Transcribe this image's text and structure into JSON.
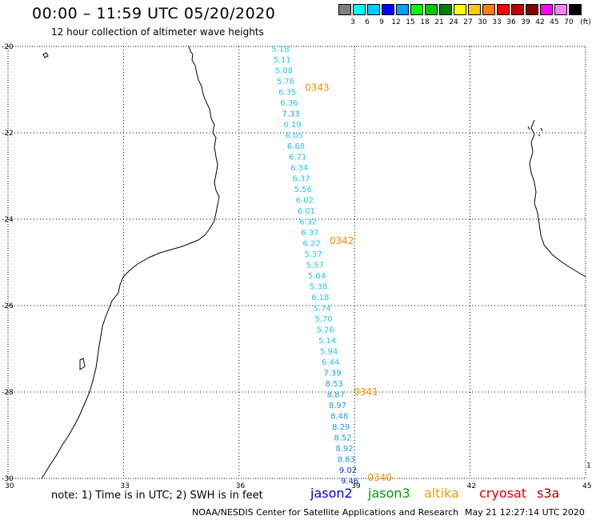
{
  "header": {
    "title": "00:00 – 11:59 UTC 05/20/2020",
    "subtitle": "12 hour collection of altimeter wave heights"
  },
  "colorbar": {
    "labels": [
      "3",
      "6",
      "9",
      "12",
      "15",
      "18",
      "21",
      "24",
      "27",
      "30",
      "33",
      "36",
      "39",
      "42",
      "45",
      "70"
    ],
    "unit": "(ft)",
    "colors": [
      "#808080",
      "#00ffff",
      "#00c8ff",
      "#0000ff",
      "#00a0ff",
      "#00ff00",
      "#00c800",
      "#008000",
      "#ffff00",
      "#ffc800",
      "#ff8000",
      "#ff0000",
      "#c00000",
      "#800000",
      "#ff00ff",
      "#ff80ff",
      "#000000"
    ]
  },
  "map": {
    "lat_ticks": [
      "-20",
      "-22",
      "-24",
      "-26",
      "-28",
      "-30"
    ],
    "lon_ticks": [
      "30",
      "33",
      "36",
      "39",
      "42",
      "45"
    ],
    "extent": {
      "lon_min": 30,
      "lon_max": 45,
      "lat_min": -30,
      "lat_max": -20
    },
    "edge_label": "1",
    "track_times": [
      {
        "label": "0343",
        "lat": -20.95
      },
      {
        "label": "0342",
        "lat": -24.5
      },
      {
        "label": "0341",
        "lat": -28.0
      },
      {
        "label": "0340",
        "lat": -29.98
      }
    ],
    "swh": [
      {
        "v": "5.18",
        "lat": -20.05,
        "c": "#22c8e8"
      },
      {
        "v": "5.11",
        "lat": -20.3,
        "c": "#22c8e8"
      },
      {
        "v": "5.08",
        "lat": -20.55,
        "c": "#22c8e8"
      },
      {
        "v": "5.76",
        "lat": -20.8,
        "c": "#22c8e8"
      },
      {
        "v": "6.35",
        "lat": -21.05,
        "c": "#22c8e8"
      },
      {
        "v": "6.36",
        "lat": -21.3,
        "c": "#22c8e8"
      },
      {
        "v": "7.33",
        "lat": -21.55,
        "c": "#1aa0e0"
      },
      {
        "v": "6.19",
        "lat": -21.8,
        "c": "#22c8e8"
      },
      {
        "v": "6.05",
        "lat": -22.05,
        "c": "#22c8e8"
      },
      {
        "v": "6.68",
        "lat": -22.3,
        "c": "#22c8e8"
      },
      {
        "v": "6.71",
        "lat": -22.55,
        "c": "#22c8e8"
      },
      {
        "v": "6.34",
        "lat": -22.8,
        "c": "#22c8e8"
      },
      {
        "v": "6.37",
        "lat": -23.05,
        "c": "#22c8e8"
      },
      {
        "v": "5.56",
        "lat": -23.3,
        "c": "#22c8e8"
      },
      {
        "v": "6.02",
        "lat": -23.55,
        "c": "#22c8e8"
      },
      {
        "v": "6.01",
        "lat": -23.8,
        "c": "#22c8e8"
      },
      {
        "v": "6.32",
        "lat": -24.05,
        "c": "#22c8e8"
      },
      {
        "v": "6.37",
        "lat": -24.3,
        "c": "#22c8e8"
      },
      {
        "v": "6.22",
        "lat": -24.55,
        "c": "#22c8e8"
      },
      {
        "v": "5.37",
        "lat": -24.8,
        "c": "#22c8e8"
      },
      {
        "v": "5.57",
        "lat": -25.05,
        "c": "#22c8e8"
      },
      {
        "v": "5.64",
        "lat": -25.3,
        "c": "#22c8e8"
      },
      {
        "v": "5.38",
        "lat": -25.55,
        "c": "#22c8e8"
      },
      {
        "v": "6.18",
        "lat": -25.8,
        "c": "#22c8e8"
      },
      {
        "v": "5.74",
        "lat": -26.05,
        "c": "#22c8e8"
      },
      {
        "v": "5.70",
        "lat": -26.3,
        "c": "#22c8e8"
      },
      {
        "v": "5.26",
        "lat": -26.55,
        "c": "#22c8e8"
      },
      {
        "v": "5.14",
        "lat": -26.8,
        "c": "#22c8e8"
      },
      {
        "v": "5.94",
        "lat": -27.05,
        "c": "#22c8e8"
      },
      {
        "v": "6.44",
        "lat": -27.3,
        "c": "#22c8e8"
      },
      {
        "v": "7.39",
        "lat": -27.55,
        "c": "#1aa0e0"
      },
      {
        "v": "8.53",
        "lat": -27.8,
        "c": "#1aa0e0"
      },
      {
        "v": "8.87",
        "lat": -28.05,
        "c": "#1aa0e0"
      },
      {
        "v": "8.97",
        "lat": -28.3,
        "c": "#1aa0e0"
      },
      {
        "v": "8.48",
        "lat": -28.55,
        "c": "#1aa0e0"
      },
      {
        "v": "8.29",
        "lat": -28.8,
        "c": "#1aa0e0"
      },
      {
        "v": "8.52",
        "lat": -29.05,
        "c": "#1aa0e0"
      },
      {
        "v": "8.92",
        "lat": -29.3,
        "c": "#1aa0e0"
      },
      {
        "v": "8.83",
        "lat": -29.55,
        "c": "#1aa0e0"
      },
      {
        "v": "9.02",
        "lat": -29.8,
        "c": "#1030d0"
      },
      {
        "v": "9.46",
        "lat": -30.05,
        "c": "#1030d0"
      }
    ]
  },
  "footer": {
    "note": "note:  1) Time is in UTC;  2) SWH is in feet",
    "satellites": [
      {
        "name": "jason2",
        "color": "#0000e0"
      },
      {
        "name": "jason3",
        "color": "#00a000"
      },
      {
        "name": "altika",
        "color": "#f0a000"
      },
      {
        "name": "cryosat",
        "color": "#e00000"
      },
      {
        "name": "s3a",
        "color": "#b00000"
      }
    ],
    "credit": "NOAA/NESDIS Center for Satellite Applications and Research",
    "timestamp": "May 21 12:27:14 UTC 2020"
  }
}
